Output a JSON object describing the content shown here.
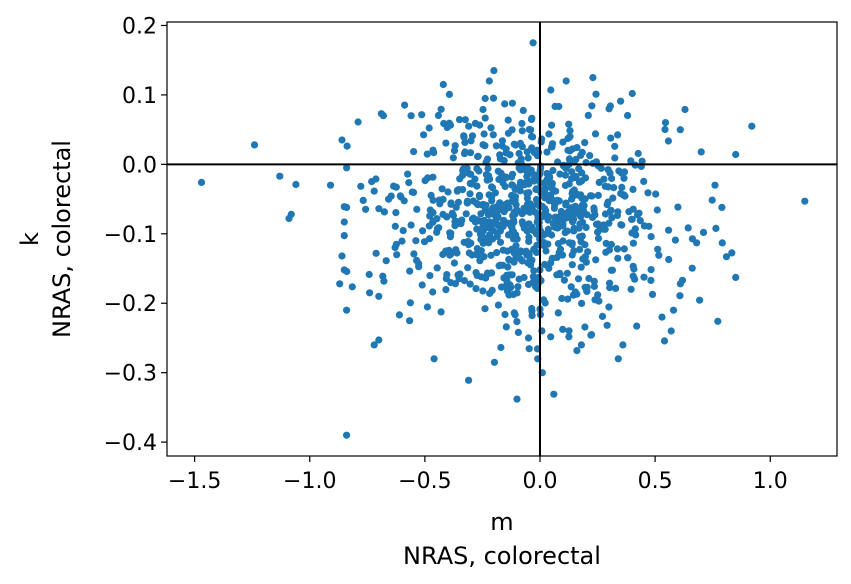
{
  "chart_data": {
    "type": "scatter",
    "title": "",
    "xlabel": [
      "m",
      "NRAS, colorectal"
    ],
    "ylabel": [
      "k",
      "NRAS, colorectal"
    ],
    "xlim": [
      -1.62,
      1.29
    ],
    "ylim": [
      -0.42,
      0.205
    ],
    "xticks": [
      -1.5,
      -1.0,
      -0.5,
      0.0,
      0.5,
      1.0
    ],
    "xtick_labels": [
      "−1.5",
      "−1.0",
      "−0.5",
      "0.0",
      "0.5",
      "1.0"
    ],
    "yticks": [
      0.2,
      0.1,
      0.0,
      -0.1,
      -0.2,
      -0.3,
      -0.4
    ],
    "ytick_labels": [
      "0.2",
      "0.1",
      "0.0",
      "−0.1",
      "−0.2",
      "−0.3",
      "−0.4"
    ],
    "reference_lines": {
      "x": 0.0,
      "y": 0.0
    },
    "grid": false,
    "legend": "none",
    "marker_color": "#1f77b4",
    "cluster": {
      "n_points": 860,
      "center": [
        -0.06,
        -0.075
      ],
      "spread": [
        0.3,
        0.072
      ]
    },
    "points": [
      [
        -1.47,
        -0.026
      ],
      [
        -1.24,
        0.028
      ],
      [
        -1.13,
        -0.017
      ],
      [
        -1.08,
        -0.072
      ],
      [
        -1.09,
        -0.078
      ],
      [
        -1.06,
        -0.029
      ],
      [
        -0.91,
        -0.03
      ],
      [
        -0.86,
        0.035
      ],
      [
        -0.84,
        -0.005
      ],
      [
        -0.84,
        -0.062
      ],
      [
        -0.86,
        -0.132
      ],
      [
        -0.87,
        -0.172
      ],
      [
        -0.84,
        -0.21
      ],
      [
        -0.84,
        -0.39
      ],
      [
        -0.79,
        0.061
      ],
      [
        -0.74,
        -0.185
      ],
      [
        -0.7,
        -0.19
      ],
      [
        -0.72,
        -0.26
      ],
      [
        -0.7,
        -0.253
      ],
      [
        -0.68,
        0.07
      ],
      [
        -0.56,
        0.07
      ],
      [
        -0.42,
        0.115
      ],
      [
        -0.46,
        -0.28
      ],
      [
        -0.31,
        -0.311
      ],
      [
        -0.22,
        0.12
      ],
      [
        -0.2,
        0.135
      ],
      [
        -0.12,
        0.088
      ],
      [
        -0.1,
        -0.338
      ],
      [
        -0.05,
        -0.25
      ],
      [
        -0.03,
        0.175
      ],
      [
        -0.01,
        -0.28
      ],
      [
        0.01,
        -0.3
      ],
      [
        0.06,
        -0.331
      ],
      [
        0.18,
        -0.26
      ],
      [
        0.23,
        0.125
      ],
      [
        0.3,
        0.08
      ],
      [
        0.34,
        -0.28
      ],
      [
        0.36,
        -0.26
      ],
      [
        0.42,
        -0.233
      ],
      [
        0.53,
        -0.22
      ],
      [
        0.57,
        -0.24
      ],
      [
        0.58,
        -0.21
      ],
      [
        0.61,
        -0.172
      ],
      [
        0.63,
        0.079
      ],
      [
        0.7,
        0.018
      ],
      [
        0.68,
        -0.113
      ],
      [
        0.71,
        -0.098
      ],
      [
        0.76,
        -0.03
      ],
      [
        0.79,
        -0.062
      ],
      [
        0.81,
        -0.133
      ],
      [
        0.92,
        0.055
      ],
      [
        1.15,
        -0.053
      ]
    ]
  }
}
